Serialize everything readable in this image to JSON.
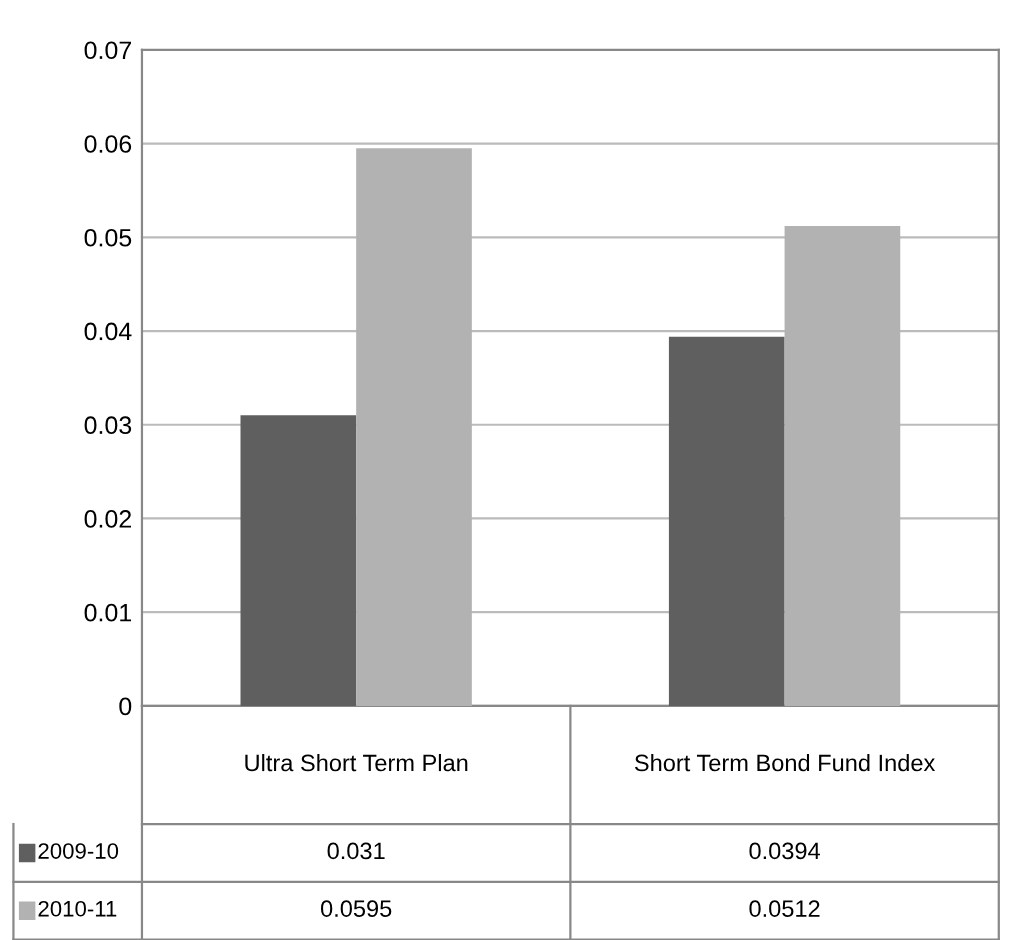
{
  "chart_data": {
    "type": "bar",
    "categories": [
      "Ultra Short Term Plan",
      "Short Term Bond Fund Index"
    ],
    "series": [
      {
        "name": "2009-10",
        "color": "#5f5f5f",
        "values": [
          0.031,
          0.0394
        ]
      },
      {
        "name": "2010-11",
        "color": "#b2b2b2",
        "values": [
          0.0595,
          0.0512
        ]
      }
    ],
    "ylim": [
      0,
      0.07
    ],
    "yticks": [
      0,
      0.01,
      0.02,
      0.03,
      0.04,
      0.05,
      0.06,
      0.07
    ],
    "grid": "y",
    "data_labels": true,
    "legend": "bottom"
  }
}
